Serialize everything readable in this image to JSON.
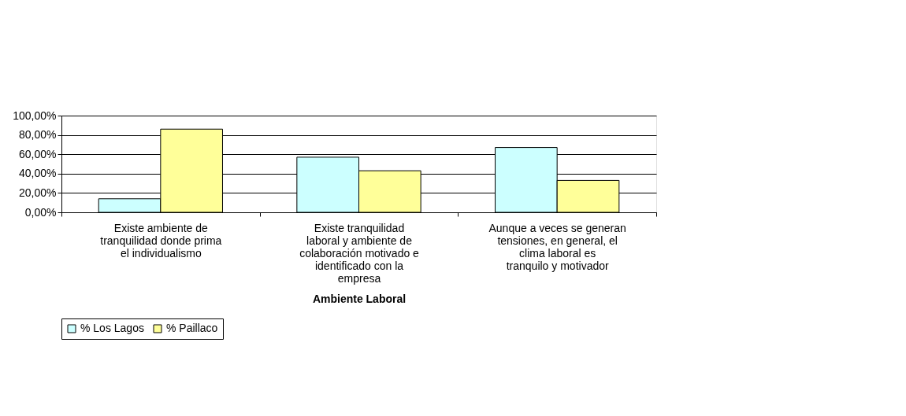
{
  "chart_data": {
    "type": "bar",
    "xlabel": "Ambiente Laboral",
    "categories": [
      "Existe ambiente de tranquilidad donde prima el individualismo",
      "Existe tranquilidad laboral y ambiente de colaboración motivado e identificado con la empresa",
      "Aunque a veces se generan tensiones, en general, el clima laboral es tranquilo y motivador"
    ],
    "series": [
      {
        "name": "% Los Lagos",
        "color": "#ccffff",
        "values": [
          14,
          57,
          67
        ]
      },
      {
        "name": "% Paillaco",
        "color": "#ffff99",
        "values": [
          86,
          43,
          33
        ]
      }
    ],
    "ylim": [
      0,
      100
    ],
    "yticks": [
      {
        "value": 0,
        "label": "0,00%"
      },
      {
        "value": 20,
        "label": "20,00%"
      },
      {
        "value": 40,
        "label": "40,00%"
      },
      {
        "value": 60,
        "label": "60,00%"
      },
      {
        "value": 80,
        "label": "80,00%"
      },
      {
        "value": 100,
        "label": "100,00%"
      }
    ],
    "grid": "y",
    "legend": "bottom"
  }
}
